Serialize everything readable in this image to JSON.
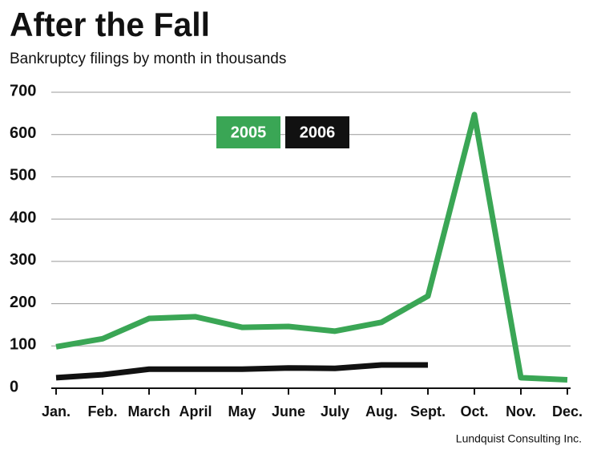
{
  "chart_data": {
    "type": "line",
    "title": "After the Fall",
    "subtitle": "Bankruptcy filings by month in thousands",
    "source": "Lundquist Consulting Inc.",
    "categories": [
      "Jan.",
      "Feb.",
      "March",
      "April",
      "May",
      "June",
      "July",
      "Aug.",
      "Sept.",
      "Oct.",
      "Nov.",
      "Dec."
    ],
    "series": [
      {
        "name": "2005",
        "color": "#3aa655",
        "values": [
          98,
          117,
          165,
          169,
          144,
          146,
          135,
          156,
          218,
          647,
          25,
          20
        ]
      },
      {
        "name": "2006",
        "color": "#111111",
        "values": [
          25,
          32,
          45,
          45,
          45,
          48,
          47,
          55,
          55,
          null,
          null,
          null
        ]
      }
    ],
    "ylim": [
      0,
      700
    ],
    "yticks": [
      0,
      100,
      200,
      300,
      400,
      500,
      600,
      700
    ],
    "grid": true
  }
}
